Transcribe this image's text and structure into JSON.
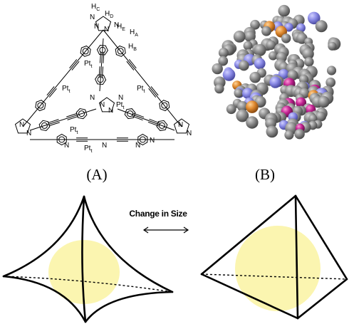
{
  "panel_a": {
    "label": "(A)",
    "structure": {
      "labels": [
        {
          "text": "H",
          "sub": "C"
        },
        {
          "text": "H",
          "sub": "D"
        },
        {
          "text": "H",
          "sub": "E"
        },
        {
          "text": "H",
          "sub": "A"
        },
        {
          "text": "H",
          "sub": "B"
        },
        {
          "text": "N"
        },
        {
          "text": "N"
        },
        {
          "text": "N"
        },
        {
          "text": "N"
        },
        {
          "text": "Pt",
          "sub": "t"
        },
        {
          "text": "Pt",
          "sub": "t"
        },
        {
          "text": "Pt",
          "sub": "t"
        },
        {
          "text": "Pt",
          "sub": "t"
        },
        {
          "text": "Pt",
          "sub": "t"
        },
        {
          "text": "Pt",
          "sub": "t"
        },
        {
          "text": "N"
        },
        {
          "text": "N"
        },
        {
          "text": "N"
        },
        {
          "text": "N"
        },
        {
          "text": "N"
        },
        {
          "text": "N"
        },
        {
          "text": "N"
        },
        {
          "text": "N"
        },
        {
          "text": "N"
        },
        {
          "text": "N"
        },
        {
          "text": "N"
        },
        {
          "text": "N"
        }
      ]
    }
  },
  "panel_b": {
    "label": "(B)"
  },
  "bottom": {
    "caption": "Change in Size"
  }
}
